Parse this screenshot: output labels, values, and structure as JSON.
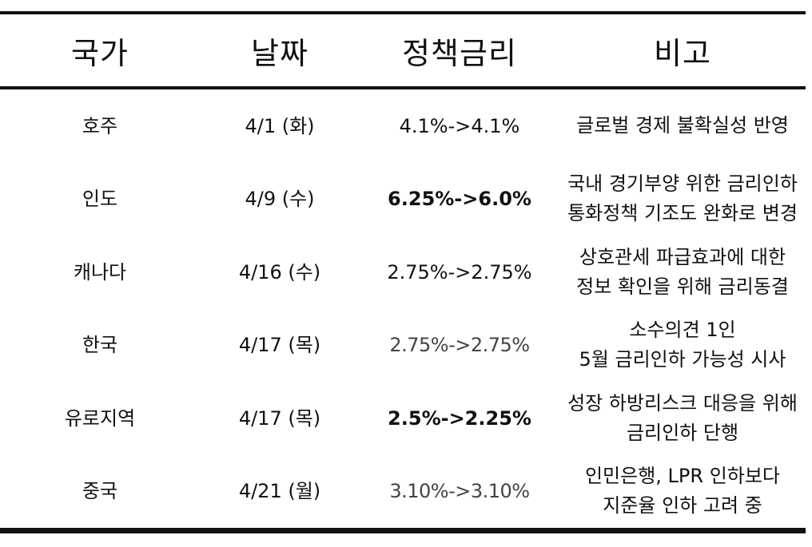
{
  "table": {
    "headers": [
      "국가",
      "날짜",
      "정책금리",
      "비고"
    ],
    "rows": [
      {
        "country": "호주",
        "date": "4/1 (화)",
        "rate": "4.1%->4.1%",
        "rate_weight": "normal",
        "note": [
          "글로벌 경제 불확실성 반영"
        ]
      },
      {
        "country": "인도",
        "date": "4/9 (수)",
        "rate": "6.25%->6.0%",
        "rate_weight": "bold",
        "note": [
          "국내 경기부양 위한 금리인하",
          "통화정책 기조도 완화로 변경"
        ]
      },
      {
        "country": "캐나다",
        "date": "4/16 (수)",
        "rate": "2.75%->2.75%",
        "rate_weight": "normal",
        "note": [
          "상호관세 파급효과에 대한",
          "정보 확인을 위해 금리동결"
        ]
      },
      {
        "country": "한국",
        "date": "4/17 (목)",
        "rate": "2.75%->2.75%",
        "rate_weight": "light",
        "note": [
          "소수의견 1인",
          "5월 금리인하 가능성 시사"
        ]
      },
      {
        "country": "유로지역",
        "date": "4/17 (목)",
        "rate": "2.5%->2.25%",
        "rate_weight": "bold",
        "note": [
          "성장 하방리스크 대응을 위해",
          "금리인하 단행"
        ]
      },
      {
        "country": "중국",
        "date": "4/21 (월)",
        "rate": "3.10%->3.10%",
        "rate_weight": "light",
        "note": [
          "인민은행, LPR 인하보다",
          "지준율 인하 고려 중"
        ]
      }
    ]
  }
}
